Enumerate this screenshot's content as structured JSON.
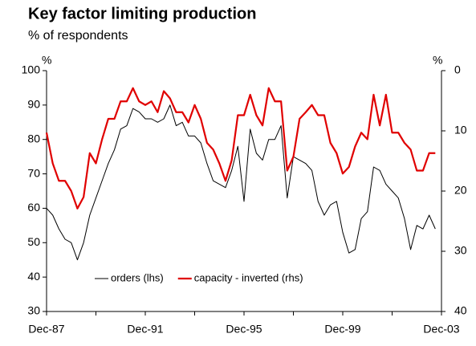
{
  "chart_data": {
    "type": "line",
    "title": "Key factor limiting production",
    "subtitle": "% of respondents",
    "y_label": "%",
    "y2_label": "%",
    "categories": [
      "Dec-87",
      null,
      null,
      null,
      null,
      null,
      null,
      null,
      null,
      null,
      null,
      null,
      null,
      null,
      null,
      null,
      "Dec-91",
      null,
      null,
      null,
      null,
      null,
      null,
      null,
      null,
      null,
      null,
      null,
      null,
      null,
      null,
      null,
      "Dec-95",
      null,
      null,
      null,
      null,
      null,
      null,
      null,
      null,
      null,
      null,
      null,
      null,
      null,
      null,
      null,
      "Dec-99",
      null,
      null,
      null,
      null,
      null,
      null,
      null,
      null,
      null,
      null,
      null,
      null,
      null,
      null,
      null,
      "Dec-03"
    ],
    "series": [
      {
        "name": "orders (lhs)",
        "color": "#000000",
        "axis": "y",
        "values": [
          60,
          58,
          54,
          51,
          50,
          45,
          50,
          58,
          63,
          68,
          73,
          77,
          83,
          84,
          89,
          88,
          86,
          86,
          85,
          86,
          90,
          84,
          85,
          81,
          81,
          79,
          73,
          68,
          67,
          66,
          71,
          78,
          62,
          83,
          76,
          74,
          80,
          80,
          84,
          63,
          75,
          74,
          73,
          71,
          62,
          58,
          61,
          62,
          53,
          47,
          48,
          57,
          59,
          72,
          71,
          67,
          65,
          63,
          57,
          48,
          55,
          54,
          58,
          54,
          null
        ]
      },
      {
        "name": "capacity - inverted (rhs)",
        "color": "#e00000",
        "axis": "y2",
        "values": [
          10.3,
          15.4,
          18.3,
          18.3,
          20,
          22.9,
          21,
          13.7,
          15.4,
          11.4,
          8,
          8,
          5.1,
          5.1,
          2.9,
          5.1,
          5.7,
          5.1,
          6.9,
          3.4,
          4.6,
          6.9,
          6.9,
          8.6,
          5.7,
          8,
          12,
          13.1,
          15.4,
          18.3,
          14.9,
          7.4,
          7.4,
          4,
          7.4,
          9.1,
          2.9,
          5.1,
          5.1,
          16.6,
          14.3,
          8,
          6.9,
          5.7,
          7.4,
          7.4,
          12,
          13.7,
          17.1,
          16,
          12.6,
          10.3,
          11.4,
          4,
          9.1,
          4,
          10.3,
          10.3,
          12,
          13.1,
          16.6,
          16.6,
          13.7,
          13.7,
          null
        ]
      }
    ],
    "ylim": [
      30,
      100
    ],
    "yticks": [
      30,
      40,
      50,
      60,
      70,
      80,
      90,
      100
    ],
    "y2lim": [
      40,
      0
    ],
    "y2ticks": [
      0,
      10,
      20,
      30,
      40
    ],
    "legend": "bottom"
  }
}
